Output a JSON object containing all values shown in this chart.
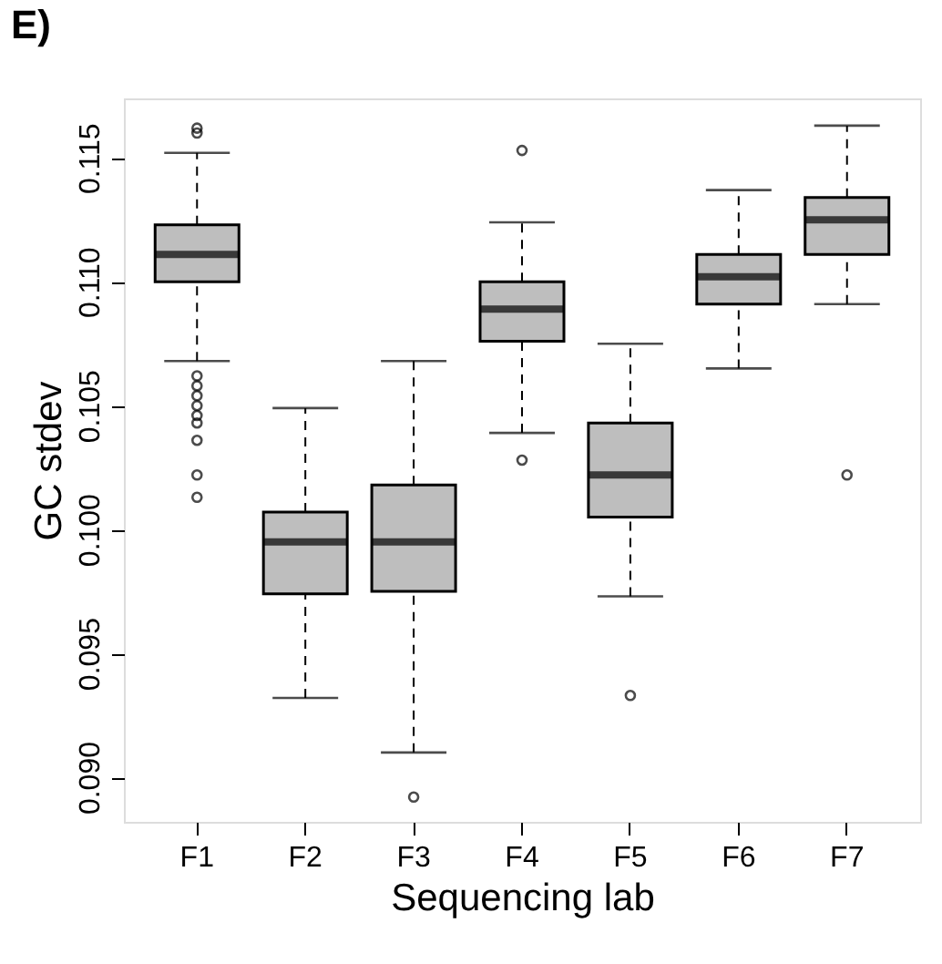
{
  "chart_data": {
    "type": "box",
    "title": "E)",
    "xlabel": "Sequencing lab",
    "ylabel": "GC stdev",
    "categories": [
      "F1",
      "F2",
      "F3",
      "F4",
      "F5",
      "F6",
      "F7"
    ],
    "color": "#bebebe",
    "boxes": [
      {
        "low": 0.1068,
        "q1": 0.11,
        "median": 0.1111,
        "q3": 0.1123,
        "high": 0.1152,
        "outliers": [
          0.1162,
          0.116,
          0.1062,
          0.1058,
          0.1054,
          0.105,
          0.1046,
          0.1043,
          0.1036,
          0.1022,
          0.1013
        ]
      },
      {
        "low": 0.0932,
        "q1": 0.0974,
        "median": 0.0995,
        "q3": 0.1007,
        "high": 0.1049
      },
      {
        "low": 0.091,
        "q1": 0.0975,
        "median": 0.0995,
        "q3": 0.1018,
        "high": 0.1068,
        "outliers": [
          0.0892
        ]
      },
      {
        "low": 0.1039,
        "q1": 0.1076,
        "median": 0.1089,
        "q3": 0.11,
        "high": 0.1124,
        "outliers": [
          0.1153,
          0.1028
        ]
      },
      {
        "low": 0.0973,
        "q1": 0.1005,
        "median": 0.1022,
        "q3": 0.1043,
        "high": 0.1075,
        "outliers": [
          0.0933
        ]
      },
      {
        "low": 0.1065,
        "q1": 0.1091,
        "median": 0.1102,
        "q3": 0.1111,
        "high": 0.1137
      },
      {
        "low": 0.1091,
        "q1": 0.1111,
        "median": 0.1125,
        "q3": 0.1134,
        "high": 0.1163,
        "outliers": [
          0.1022
        ]
      }
    ],
    "ylim": [
      0.0882,
      0.1174
    ],
    "yticks": [
      {
        "value": 0.09,
        "label": "0.090"
      },
      0.095,
      {
        "value": 0.1,
        "label": "0.100"
      },
      0.105,
      {
        "value": 0.11,
        "label": "0.110"
      },
      0.115
    ],
    "grid": false
  }
}
